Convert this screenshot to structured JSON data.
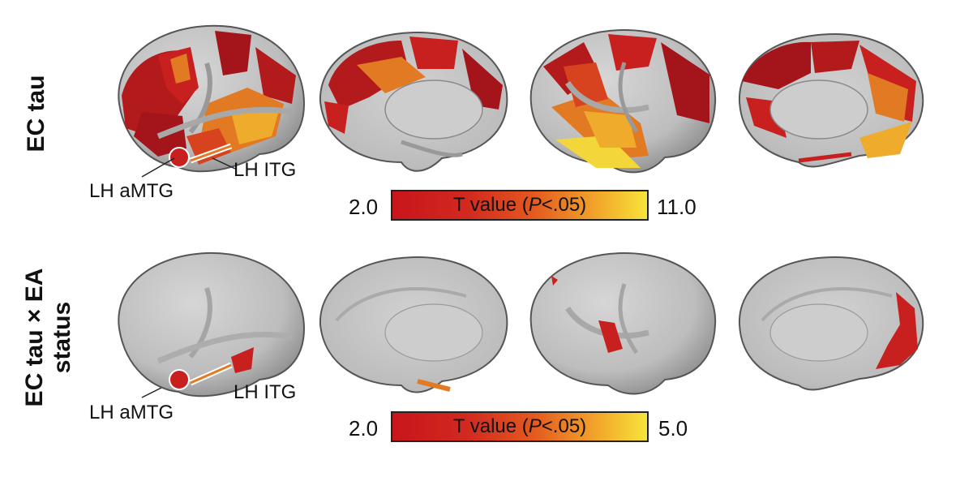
{
  "rows": [
    {
      "label_lines": [
        "EC tau"
      ],
      "annotations": {
        "amtg": "LH aMTG",
        "itg": "LH ITG"
      },
      "colorbar": {
        "min": "2.0",
        "max": "11.0",
        "label_pre": "T value (",
        "label_p": "P",
        "label_post": "<.05)"
      }
    },
    {
      "label_lines": [
        "EC tau × EA",
        "status"
      ],
      "annotations": {
        "amtg": "LH aMTG",
        "itg": "LH ITG"
      },
      "colorbar": {
        "min": "2.0",
        "max": "5.0",
        "label_pre": "T value (",
        "label_p": "P",
        "label_post": "<.05)"
      }
    }
  ],
  "colors": {
    "cortex": "#c4c4c4",
    "cortex_dark": "#9a9a9a",
    "dark_red": "#a3141b",
    "red": "#c8201f",
    "orange_red": "#d8431f",
    "orange": "#e27a24",
    "yellow_orange": "#eeab2c",
    "yellow": "#f3d63a"
  },
  "views": [
    "left-lateral",
    "left-medial",
    "right-lateral",
    "right-medial"
  ]
}
